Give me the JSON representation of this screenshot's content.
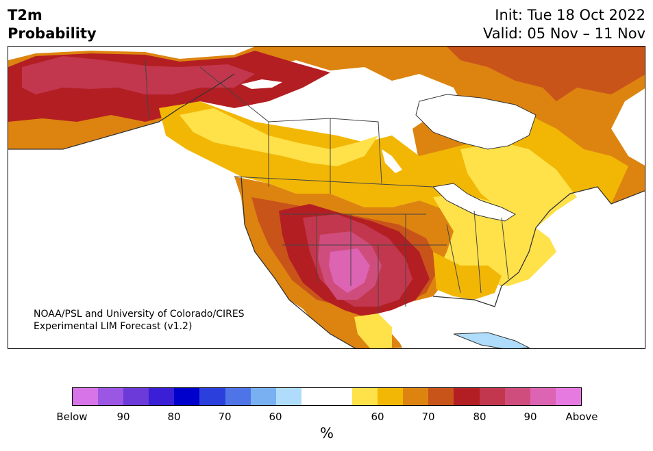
{
  "title": {
    "left_line1": "T2m",
    "left_line2": "Probability",
    "right_line1": "Init: Tue 18 Oct 2022",
    "right_line2": "Valid: 05 Nov – 11 Nov"
  },
  "credit": {
    "line1": "NOAA/PSL and University of Colorado/CIRES",
    "line2": "Experimental LIM Forecast (v1.2)"
  },
  "colorbar": {
    "unit": "%",
    "colors": [
      "#d674e8",
      "#9b57e3",
      "#6c3ad9",
      "#3a1fd6",
      "#0000cd",
      "#2a3fdc",
      "#4f74e8",
      "#78b0f2",
      "#aedcfa",
      "#ffffff",
      "#ffffff",
      "#ffe14a",
      "#f2b705",
      "#dd8410",
      "#c9541a",
      "#b31e23",
      "#c2374d",
      "#cf4d7d",
      "#dc64b3",
      "#e77ae0"
    ],
    "labels": [
      "Below",
      "90",
      "80",
      "70",
      "60",
      "60",
      "70",
      "80",
      "90",
      "Above"
    ]
  },
  "map": {
    "ocean_color": "#ffffff",
    "border_color": "#333333",
    "lake_color": "#ffffff"
  }
}
